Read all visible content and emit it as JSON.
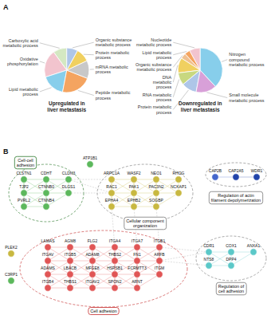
{
  "chart_data": [
    {
      "type": "pie",
      "title": "Upregulated in\nliver metastasis",
      "annotations": [
        {
          "text": "A"
        }
      ],
      "categories": [
        "Carboxylic acid\nmetabolic process",
        "Oxidative\nphosphorylation",
        "Lipid metabolic\nprocess",
        "Peptide metabolic\nprocess",
        "mRNA metabolic\nprocess",
        "Protein metabolic\nprocess",
        "Organic substance\nmetabolic process"
      ],
      "values": [
        10,
        20,
        17,
        22,
        13,
        10,
        8
      ],
      "colors": [
        "#d4e8c2",
        "#f2c4ce",
        "#87ceeb",
        "#f4a460",
        "#c8c8c8",
        "#f0d060",
        "#aec6e8"
      ]
    },
    {
      "type": "pie",
      "title": "Downregulated in\nliver metastasis",
      "categories": [
        "Nucleotide\nmetabolic process",
        "Lipid metabolic\nprocess",
        "Organic substance\nmetabolic process",
        "DNA\nmetabolic\nprocess",
        "RNA metabolic\nprocess",
        "Protein metabolic\nprocess",
        "Small molecule\nmetabolic process",
        "Nitrogen\ncompound\nmetabolic process"
      ],
      "values": [
        8,
        4,
        4,
        11,
        9,
        11,
        15,
        38
      ],
      "colors": [
        "#f2c4ce",
        "#f4a460",
        "#f0c090",
        "#f0d060",
        "#c8d880",
        "#aec6e8",
        "#d8a0d8",
        "#87ceeb"
      ]
    },
    {
      "type": "network",
      "annotations": [
        {
          "text": "B"
        }
      ],
      "group_links": [
        [
          0,
          1
        ],
        [
          1,
          2
        ],
        [
          2,
          3
        ]
      ],
      "series": [
        {
          "name": "Cell-cell\nadhesion",
          "color": "#448844",
          "nodes": [
            {
              "name": "CLSTN1",
              "color": "#5cb85c"
            },
            {
              "name": "CDHT",
              "color": "#5cb85c"
            },
            {
              "name": "CLDN3",
              "color": "#5cb85c"
            },
            {
              "name": "TJP2",
              "color": "#5cb85c"
            },
            {
              "name": "CTNNB0",
              "color": "#5cb85c"
            },
            {
              "name": "DLGS1",
              "color": "#5cb85c"
            },
            {
              "name": "PVRL2",
              "color": "#5cb85c"
            },
            {
              "name": "CTNNB4",
              "color": "#5cb85c"
            }
          ]
        },
        {
          "name": "Cellular component\norganization",
          "color": "#888888",
          "nodes": [
            {
              "name": "ARPC1A",
              "color": "#c8b840"
            },
            {
              "name": "WASF2",
              "color": "#c8b840"
            },
            {
              "name": "NEO1",
              "color": "#c8b840"
            },
            {
              "name": "RHOG",
              "color": "#c8b840"
            },
            {
              "name": "RAC1",
              "color": "#c8b840"
            },
            {
              "name": "PAK1",
              "color": "#c8b840"
            },
            {
              "name": "PAC3N2",
              "color": "#c8b840"
            },
            {
              "name": "NCKAP1",
              "color": "#c8b840"
            },
            {
              "name": "EPHA4",
              "color": "#c8b840"
            },
            {
              "name": "EPHB2",
              "color": "#c8b840"
            },
            {
              "name": "SOGBP",
              "color": "#c8b840"
            }
          ]
        },
        {
          "name": "Cell adhesion",
          "color": "#cc4444",
          "nodes": [
            {
              "name": "LAMAS",
              "color": "#e05555"
            },
            {
              "name": "AGM8",
              "color": "#e05555"
            },
            {
              "name": "FLG2",
              "color": "#e05555"
            },
            {
              "name": "ITGA4",
              "color": "#e05555"
            },
            {
              "name": "ITGA7",
              "color": "#e05555"
            },
            {
              "name": "ITGB1",
              "color": "#e05555"
            },
            {
              "name": "ITGAV",
              "color": "#e05555"
            },
            {
              "name": "ITGB5",
              "color": "#e05555"
            },
            {
              "name": "ADAM8",
              "color": "#e05555"
            },
            {
              "name": "THBS2",
              "color": "#e05555"
            },
            {
              "name": "FN1",
              "color": "#e05555"
            },
            {
              "name": "ARFB",
              "color": "#e05555"
            },
            {
              "name": "ADAMS",
              "color": "#e05555"
            },
            {
              "name": "LBACB",
              "color": "#e05555"
            },
            {
              "name": "MFGE8",
              "color": "#e05555"
            },
            {
              "name": "HSPSB1",
              "color": "#e05555"
            },
            {
              "name": "FCRMTT3",
              "color": "#e05555"
            },
            {
              "name": "ITGM",
              "color": "#e05555"
            },
            {
              "name": "ITGB4",
              "color": "#e05555"
            },
            {
              "name": "THBS1",
              "color": "#e05555"
            },
            {
              "name": "ITGAV2",
              "color": "#e05555"
            },
            {
              "name": "SPON2",
              "color": "#e05555"
            },
            {
              "name": "ARNT",
              "color": "#e05555"
            }
          ]
        },
        {
          "name": "Regulation of\ncell adhesion",
          "color": "#888888",
          "nodes": [
            {
              "name": "CDR1",
              "color": "#5bc8c8"
            },
            {
              "name": "COX1",
              "color": "#5bc8c8"
            },
            {
              "name": "ANXA1",
              "color": "#5bc8c8"
            },
            {
              "name": "NTS8",
              "color": "#5bc8c8"
            },
            {
              "name": "DPP4",
              "color": "#5bc8c8"
            }
          ]
        },
        {
          "name": "Regulation of actin\nfilament depolymerization",
          "color": "#888888",
          "nodes": [
            {
              "name": "CAP2B",
              "color": "#4466cc"
            },
            {
              "name": "CAP2A5",
              "color": "#2244aa"
            },
            {
              "name": "WDR1",
              "color": "#2244aa"
            }
          ]
        },
        {
          "nodes": [
            {
              "name": "PLEK2",
              "color": "#c8b840"
            },
            {
              "name": "ATP1B1",
              "color": "#5cb85c"
            },
            {
              "name": "C3RP1",
              "color": "#5cb85c"
            }
          ]
        }
      ]
    }
  ]
}
